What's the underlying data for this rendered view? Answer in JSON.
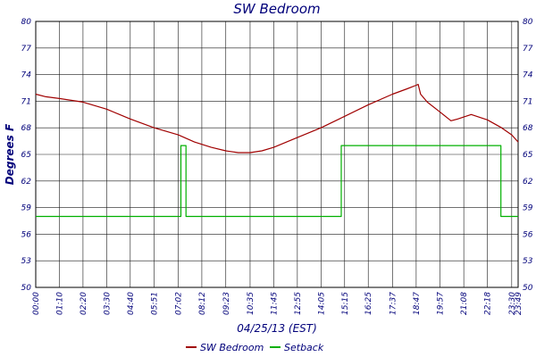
{
  "chart_data": {
    "type": "line",
    "title": "SW Bedroom",
    "xlabel": "04/25/13 (EST)",
    "ylabel": "Degrees F",
    "ylim": [
      50,
      80
    ],
    "yticks": [
      50,
      53,
      56,
      59,
      62,
      65,
      68,
      71,
      74,
      77,
      80
    ],
    "x_range_minutes": [
      0,
      1429
    ],
    "xticks": [
      {
        "label": "00:00",
        "minute": 0
      },
      {
        "label": "01:10",
        "minute": 70
      },
      {
        "label": "02:20",
        "minute": 140
      },
      {
        "label": "03:30",
        "minute": 210
      },
      {
        "label": "04:40",
        "minute": 280
      },
      {
        "label": "05:51",
        "minute": 351
      },
      {
        "label": "07:02",
        "minute": 422
      },
      {
        "label": "08:12",
        "minute": 492
      },
      {
        "label": "09:23",
        "minute": 563
      },
      {
        "label": "10:35",
        "minute": 635
      },
      {
        "label": "11:45",
        "minute": 705
      },
      {
        "label": "12:55",
        "minute": 775
      },
      {
        "label": "14:05",
        "minute": 845
      },
      {
        "label": "15:15",
        "minute": 915
      },
      {
        "label": "16:25",
        "minute": 985
      },
      {
        "label": "17:37",
        "minute": 1057
      },
      {
        "label": "18:47",
        "minute": 1127
      },
      {
        "label": "19:57",
        "minute": 1197
      },
      {
        "label": "21:08",
        "minute": 1268
      },
      {
        "label": "22:18",
        "minute": 1338
      },
      {
        "label": "23:30",
        "minute": 1410
      },
      {
        "label": "23:49",
        "minute": 1429
      }
    ],
    "grid": true,
    "legend_position": "bottom-center",
    "series": [
      {
        "name": "SW Bedroom",
        "color": "#a00000",
        "x": [
          0,
          30,
          70,
          140,
          210,
          280,
          351,
          422,
          470,
          520,
          563,
          600,
          635,
          670,
          705,
          775,
          845,
          915,
          985,
          1057,
          1100,
          1127,
          1133,
          1140,
          1160,
          1197,
          1230,
          1250,
          1290,
          1338,
          1380,
          1410,
          1429
        ],
        "y": [
          71.8,
          71.5,
          71.3,
          70.9,
          70.1,
          69.0,
          68.0,
          67.2,
          66.4,
          65.8,
          65.4,
          65.2,
          65.2,
          65.4,
          65.8,
          66.9,
          68.0,
          69.3,
          70.6,
          71.8,
          72.4,
          72.8,
          72.9,
          71.8,
          70.9,
          69.8,
          68.8,
          69.0,
          69.5,
          68.9,
          68.0,
          67.2,
          66.4
        ]
      },
      {
        "name": "Setback",
        "color": "#00b000",
        "x": [
          0,
          430,
          430,
          445,
          445,
          905,
          905,
          1378,
          1378,
          1429
        ],
        "y": [
          58,
          58,
          66,
          66,
          58,
          58,
          66,
          66,
          58,
          58
        ]
      }
    ]
  }
}
